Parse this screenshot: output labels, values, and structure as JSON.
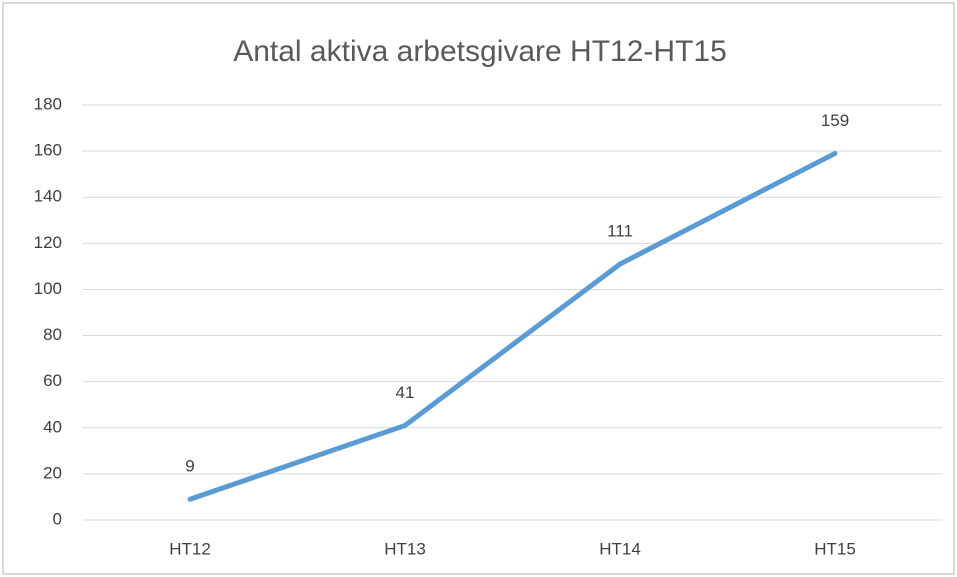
{
  "chart_data": {
    "type": "line",
    "title": "Antal aktiva arbetsgivare HT12-HT15",
    "categories": [
      "HT12",
      "HT13",
      "HT14",
      "HT15"
    ],
    "values": [
      9,
      41,
      111,
      159
    ],
    "color": "#5b9bd5",
    "ylim": [
      0,
      180
    ],
    "yticks": [
      0,
      20,
      40,
      60,
      80,
      100,
      120,
      140,
      160,
      180
    ],
    "grid": true
  }
}
